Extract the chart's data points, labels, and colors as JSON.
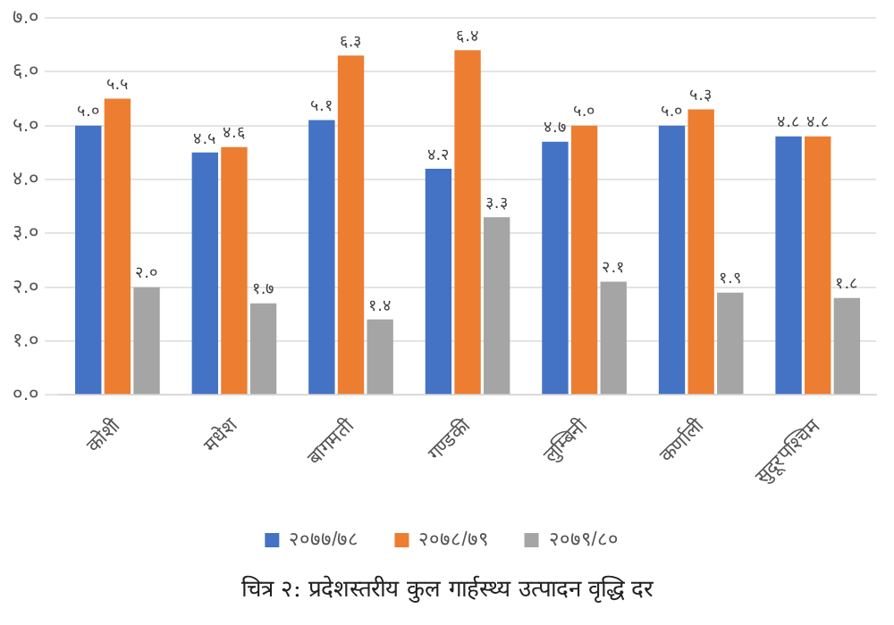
{
  "chart_data": {
    "type": "bar",
    "categories": [
      "कोशी",
      "मधेश",
      "बागमती",
      "गण्डकी",
      "लुम्बिनी",
      "कर्णाली",
      "सुदूरपश्चिम"
    ],
    "series": [
      {
        "name": "२०७७/७८",
        "color": "#4472c4",
        "values": [
          5.0,
          4.5,
          5.1,
          4.2,
          4.7,
          5.0,
          4.8
        ],
        "value_labels": [
          "५.०",
          "४.५",
          "५.१",
          "४.२",
          "४.७",
          "५.०",
          "४.८"
        ]
      },
      {
        "name": "२०७८/७९",
        "color": "#ed7d31",
        "values": [
          5.5,
          4.6,
          6.3,
          6.4,
          5.0,
          5.3,
          4.8
        ],
        "value_labels": [
          "५.५",
          "४.६",
          "६.३",
          "६.४",
          "५.०",
          "५.३",
          "४.८"
        ]
      },
      {
        "name": "२०७९/८०",
        "color": "#a5a5a5",
        "values": [
          2.0,
          1.7,
          1.4,
          3.3,
          2.1,
          1.9,
          1.8
        ],
        "value_labels": [
          "२.०",
          "१.७",
          "१.४",
          "३.३",
          "२.१",
          "१.९",
          "१.८"
        ]
      }
    ],
    "ylim": [
      0,
      7
    ],
    "yticks": [
      {
        "value": 0,
        "label": "०.०"
      },
      {
        "value": 1,
        "label": "१.०"
      },
      {
        "value": 2,
        "label": "२.०"
      },
      {
        "value": 3,
        "label": "३.०"
      },
      {
        "value": 4,
        "label": "४.०"
      },
      {
        "value": 5,
        "label": "५.०"
      },
      {
        "value": 6,
        "label": "६.०"
      },
      {
        "value": 7,
        "label": "७.०"
      }
    ],
    "grid": "y",
    "legend": "bottom",
    "annotations": [
      "चित्र २: प्रदेशस्तरीय कुल गार्हस्थ्य उत्पादन वृद्धि दर"
    ]
  }
}
